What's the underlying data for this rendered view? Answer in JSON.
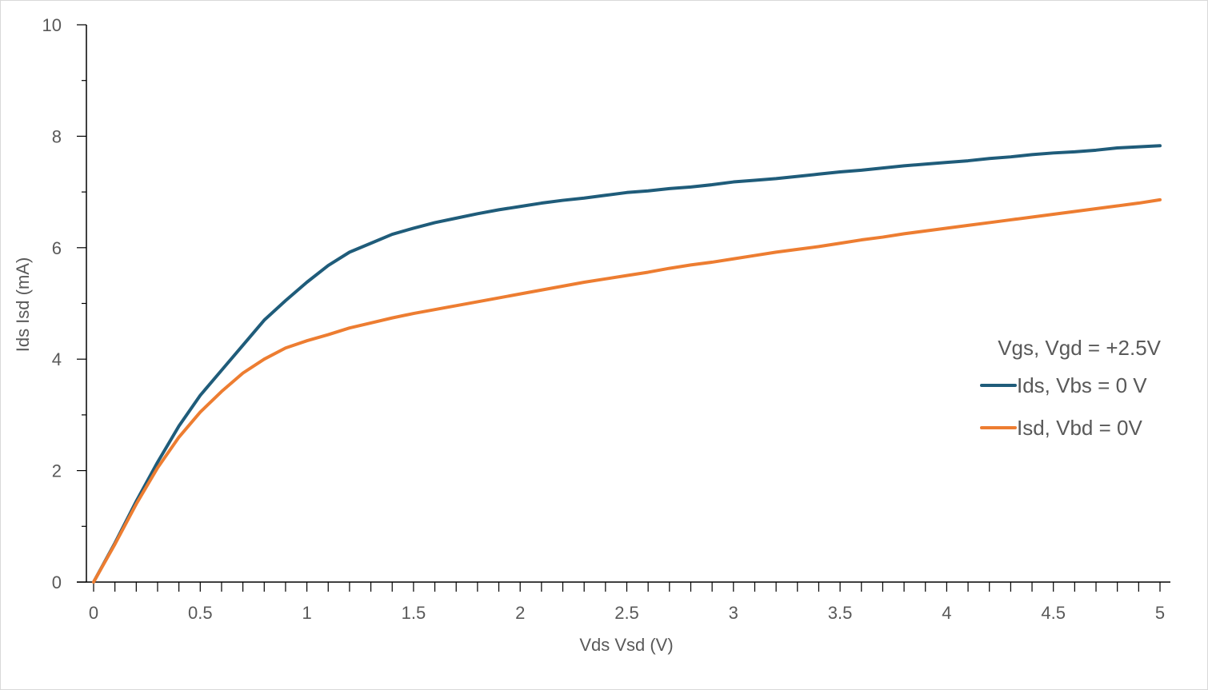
{
  "chart_data": {
    "type": "line",
    "xlabel": "Vds Vsd (V)",
    "ylabel": "Ids Isd  (mA)",
    "xlim": [
      0,
      5
    ],
    "ylim": [
      0,
      10
    ],
    "x_ticks": [
      "0",
      "0.5",
      "1",
      "1.5",
      "2",
      "2.5",
      "3",
      "3.5",
      "4",
      "4.5",
      "5"
    ],
    "y_ticks": [
      "0",
      "2",
      "4",
      "6",
      "8",
      "10"
    ],
    "grid": false,
    "legend_position": "right",
    "legend_title": "Vgs, Vgd = +2.5V",
    "x": [
      0,
      0.1,
      0.2,
      0.3,
      0.4,
      0.5,
      0.6,
      0.7,
      0.8,
      0.9,
      1.0,
      1.1,
      1.2,
      1.3,
      1.4,
      1.5,
      1.6,
      1.7,
      1.8,
      1.9,
      2.0,
      2.1,
      2.2,
      2.3,
      2.4,
      2.5,
      2.6,
      2.7,
      2.8,
      2.9,
      3.0,
      3.1,
      3.2,
      3.3,
      3.4,
      3.5,
      3.6,
      3.7,
      3.8,
      3.9,
      4.0,
      4.1,
      4.2,
      4.3,
      4.4,
      4.5,
      4.6,
      4.7,
      4.8,
      4.9,
      5.0
    ],
    "series": [
      {
        "name": "Ids, Vbs = 0 V",
        "color": "#1f5c7a",
        "values": [
          0,
          0.7,
          1.45,
          2.15,
          2.8,
          3.35,
          3.8,
          4.25,
          4.7,
          5.05,
          5.38,
          5.68,
          5.92,
          6.08,
          6.24,
          6.35,
          6.45,
          6.53,
          6.61,
          6.68,
          6.74,
          6.8,
          6.85,
          6.89,
          6.94,
          6.99,
          7.02,
          7.06,
          7.09,
          7.13,
          7.18,
          7.21,
          7.24,
          7.28,
          7.32,
          7.36,
          7.39,
          7.43,
          7.47,
          7.5,
          7.53,
          7.56,
          7.6,
          7.63,
          7.67,
          7.7,
          7.72,
          7.75,
          7.79,
          7.81,
          7.83
        ]
      },
      {
        "name": "Isd, Vbd = 0V",
        "color": "#ed7d31",
        "values": [
          0,
          0.68,
          1.4,
          2.05,
          2.6,
          3.05,
          3.42,
          3.75,
          4.0,
          4.2,
          4.33,
          4.44,
          4.56,
          4.65,
          4.74,
          4.82,
          4.89,
          4.96,
          5.03,
          5.1,
          5.17,
          5.24,
          5.31,
          5.38,
          5.44,
          5.5,
          5.56,
          5.63,
          5.69,
          5.74,
          5.8,
          5.86,
          5.92,
          5.97,
          6.02,
          6.08,
          6.14,
          6.19,
          6.25,
          6.3,
          6.35,
          6.4,
          6.45,
          6.5,
          6.55,
          6.6,
          6.65,
          6.7,
          6.75,
          6.8,
          6.86
        ]
      }
    ]
  }
}
